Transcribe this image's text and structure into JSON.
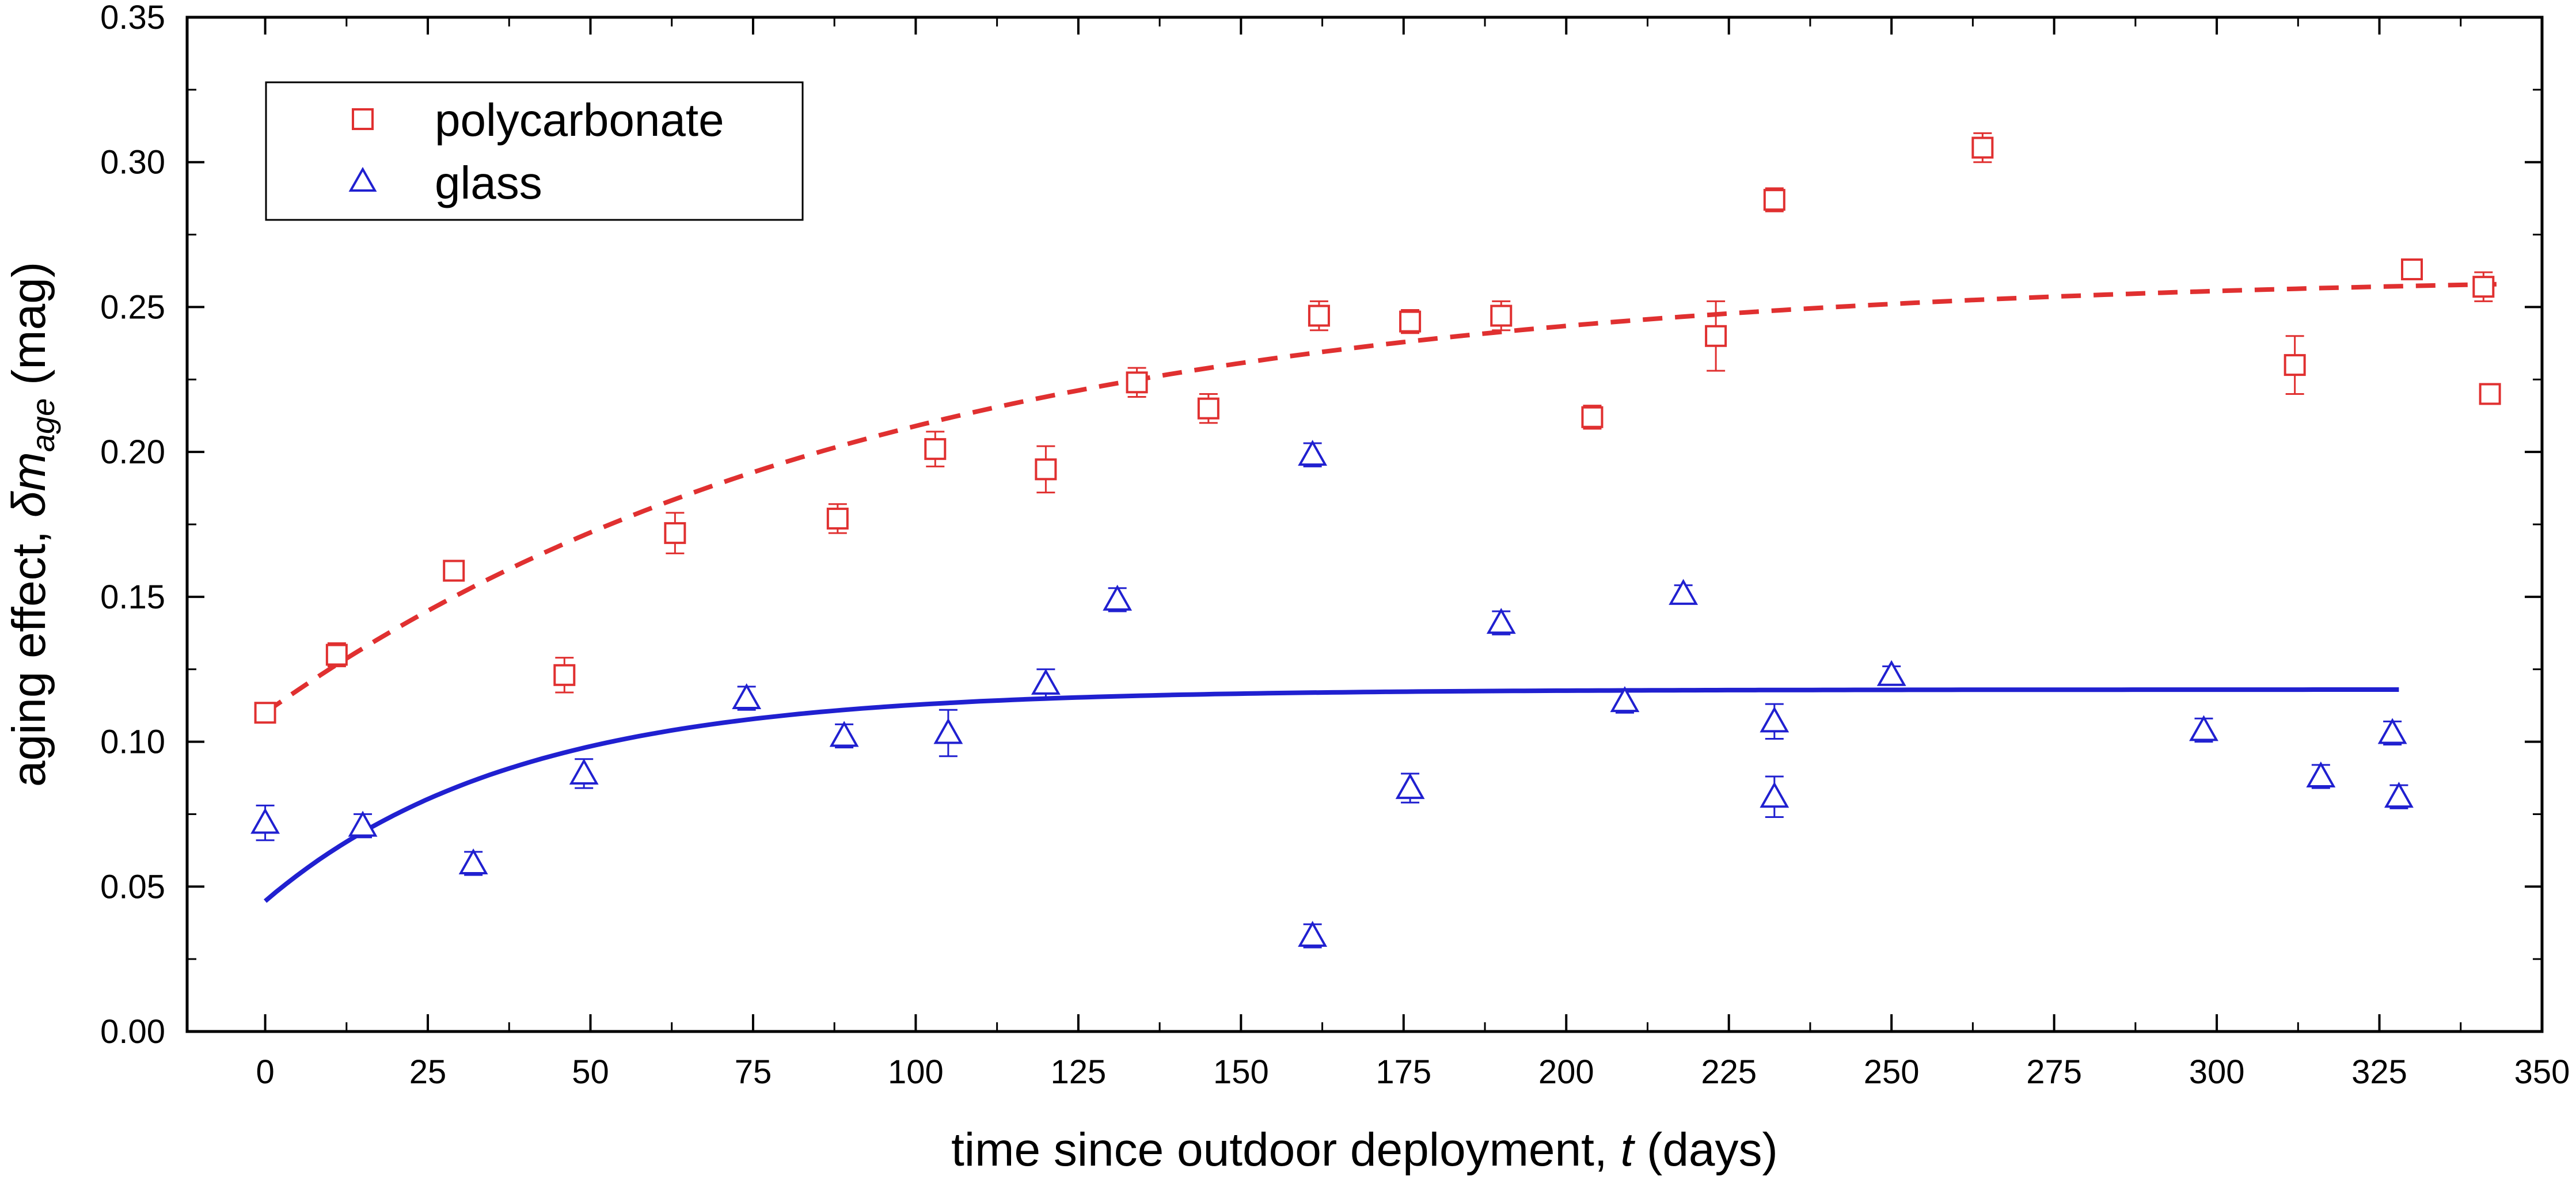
{
  "chart_data": {
    "type": "scatter",
    "title": "",
    "xlabel": {
      "prefix": "time since outdoor deployment, ",
      "variable": "t",
      "suffix": " (days)"
    },
    "ylabel": {
      "prefix": "aging effect, ",
      "symbol": "δm",
      "subscript": "age",
      "suffix": " (mag)"
    },
    "xlim": [
      -12,
      350
    ],
    "ylim": [
      0,
      0.35
    ],
    "xticks": [
      "0",
      "25",
      "50",
      "75",
      "100",
      "125",
      "150",
      "175",
      "200",
      "225",
      "250",
      "275",
      "300",
      "325",
      "350"
    ],
    "yticks": [
      "0.00",
      "0.05",
      "0.10",
      "0.15",
      "0.20",
      "0.25",
      "0.30",
      "0.35"
    ],
    "legend_position": "top-left",
    "grid": false,
    "series": [
      {
        "name": "polycarbonate",
        "marker": "square",
        "color": "#e03030",
        "points": [
          {
            "x": 0,
            "y": 0.11,
            "err": 0.003
          },
          {
            "x": 11,
            "y": 0.13,
            "err": 0.004
          },
          {
            "x": 29,
            "y": 0.159,
            "err": 0.003
          },
          {
            "x": 46,
            "y": 0.123,
            "err": 0.006
          },
          {
            "x": 63,
            "y": 0.172,
            "err": 0.007
          },
          {
            "x": 88,
            "y": 0.177,
            "err": 0.005
          },
          {
            "x": 103,
            "y": 0.201,
            "err": 0.006
          },
          {
            "x": 120,
            "y": 0.194,
            "err": 0.008
          },
          {
            "x": 134,
            "y": 0.224,
            "err": 0.005
          },
          {
            "x": 145,
            "y": 0.215,
            "err": 0.005
          },
          {
            "x": 162,
            "y": 0.247,
            "err": 0.005
          },
          {
            "x": 176,
            "y": 0.245,
            "err": 0.004
          },
          {
            "x": 190,
            "y": 0.247,
            "err": 0.005
          },
          {
            "x": 204,
            "y": 0.212,
            "err": 0.004
          },
          {
            "x": 223,
            "y": 0.24,
            "err": 0.012
          },
          {
            "x": 232,
            "y": 0.287,
            "err": 0.004
          },
          {
            "x": 264,
            "y": 0.305,
            "err": 0.005
          },
          {
            "x": 312,
            "y": 0.23,
            "err": 0.01
          },
          {
            "x": 330,
            "y": 0.263,
            "err": 0.003
          },
          {
            "x": 341,
            "y": 0.257,
            "err": 0.005
          },
          {
            "x": 342,
            "y": 0.22,
            "err": 0.002
          }
        ],
        "fit": {
          "style": "dashed",
          "model": "exponential",
          "a": 0.262,
          "b": 0.152,
          "tau": 95,
          "x_range": [
            0,
            343
          ]
        }
      },
      {
        "name": "glass",
        "marker": "triangle",
        "color": "#2020d0",
        "points": [
          {
            "x": 0,
            "y": 0.072,
            "err": 0.006
          },
          {
            "x": 15,
            "y": 0.071,
            "err": 0.004
          },
          {
            "x": 32,
            "y": 0.058,
            "err": 0.004
          },
          {
            "x": 49,
            "y": 0.089,
            "err": 0.005
          },
          {
            "x": 74,
            "y": 0.115,
            "err": 0.004
          },
          {
            "x": 89,
            "y": 0.102,
            "err": 0.004
          },
          {
            "x": 105,
            "y": 0.103,
            "err": 0.008
          },
          {
            "x": 120,
            "y": 0.12,
            "err": 0.005
          },
          {
            "x": 131,
            "y": 0.149,
            "err": 0.004
          },
          {
            "x": 161,
            "y": 0.199,
            "err": 0.004
          },
          {
            "x": 161,
            "y": 0.033,
            "err": 0.004
          },
          {
            "x": 176,
            "y": 0.084,
            "err": 0.005
          },
          {
            "x": 190,
            "y": 0.141,
            "err": 0.004
          },
          {
            "x": 209,
            "y": 0.114,
            "err": 0.004
          },
          {
            "x": 218,
            "y": 0.151,
            "err": 0.003
          },
          {
            "x": 232,
            "y": 0.107,
            "err": 0.006
          },
          {
            "x": 232,
            "y": 0.081,
            "err": 0.007
          },
          {
            "x": 250,
            "y": 0.123,
            "err": 0.003
          },
          {
            "x": 298,
            "y": 0.104,
            "err": 0.004
          },
          {
            "x": 316,
            "y": 0.088,
            "err": 0.004
          },
          {
            "x": 327,
            "y": 0.103,
            "err": 0.004
          },
          {
            "x": 328,
            "y": 0.081,
            "err": 0.004
          }
        ],
        "fit": {
          "style": "solid",
          "model": "exponential",
          "a": 0.118,
          "b": 0.073,
          "tau": 38,
          "x_range": [
            0,
            328
          ]
        }
      }
    ]
  }
}
